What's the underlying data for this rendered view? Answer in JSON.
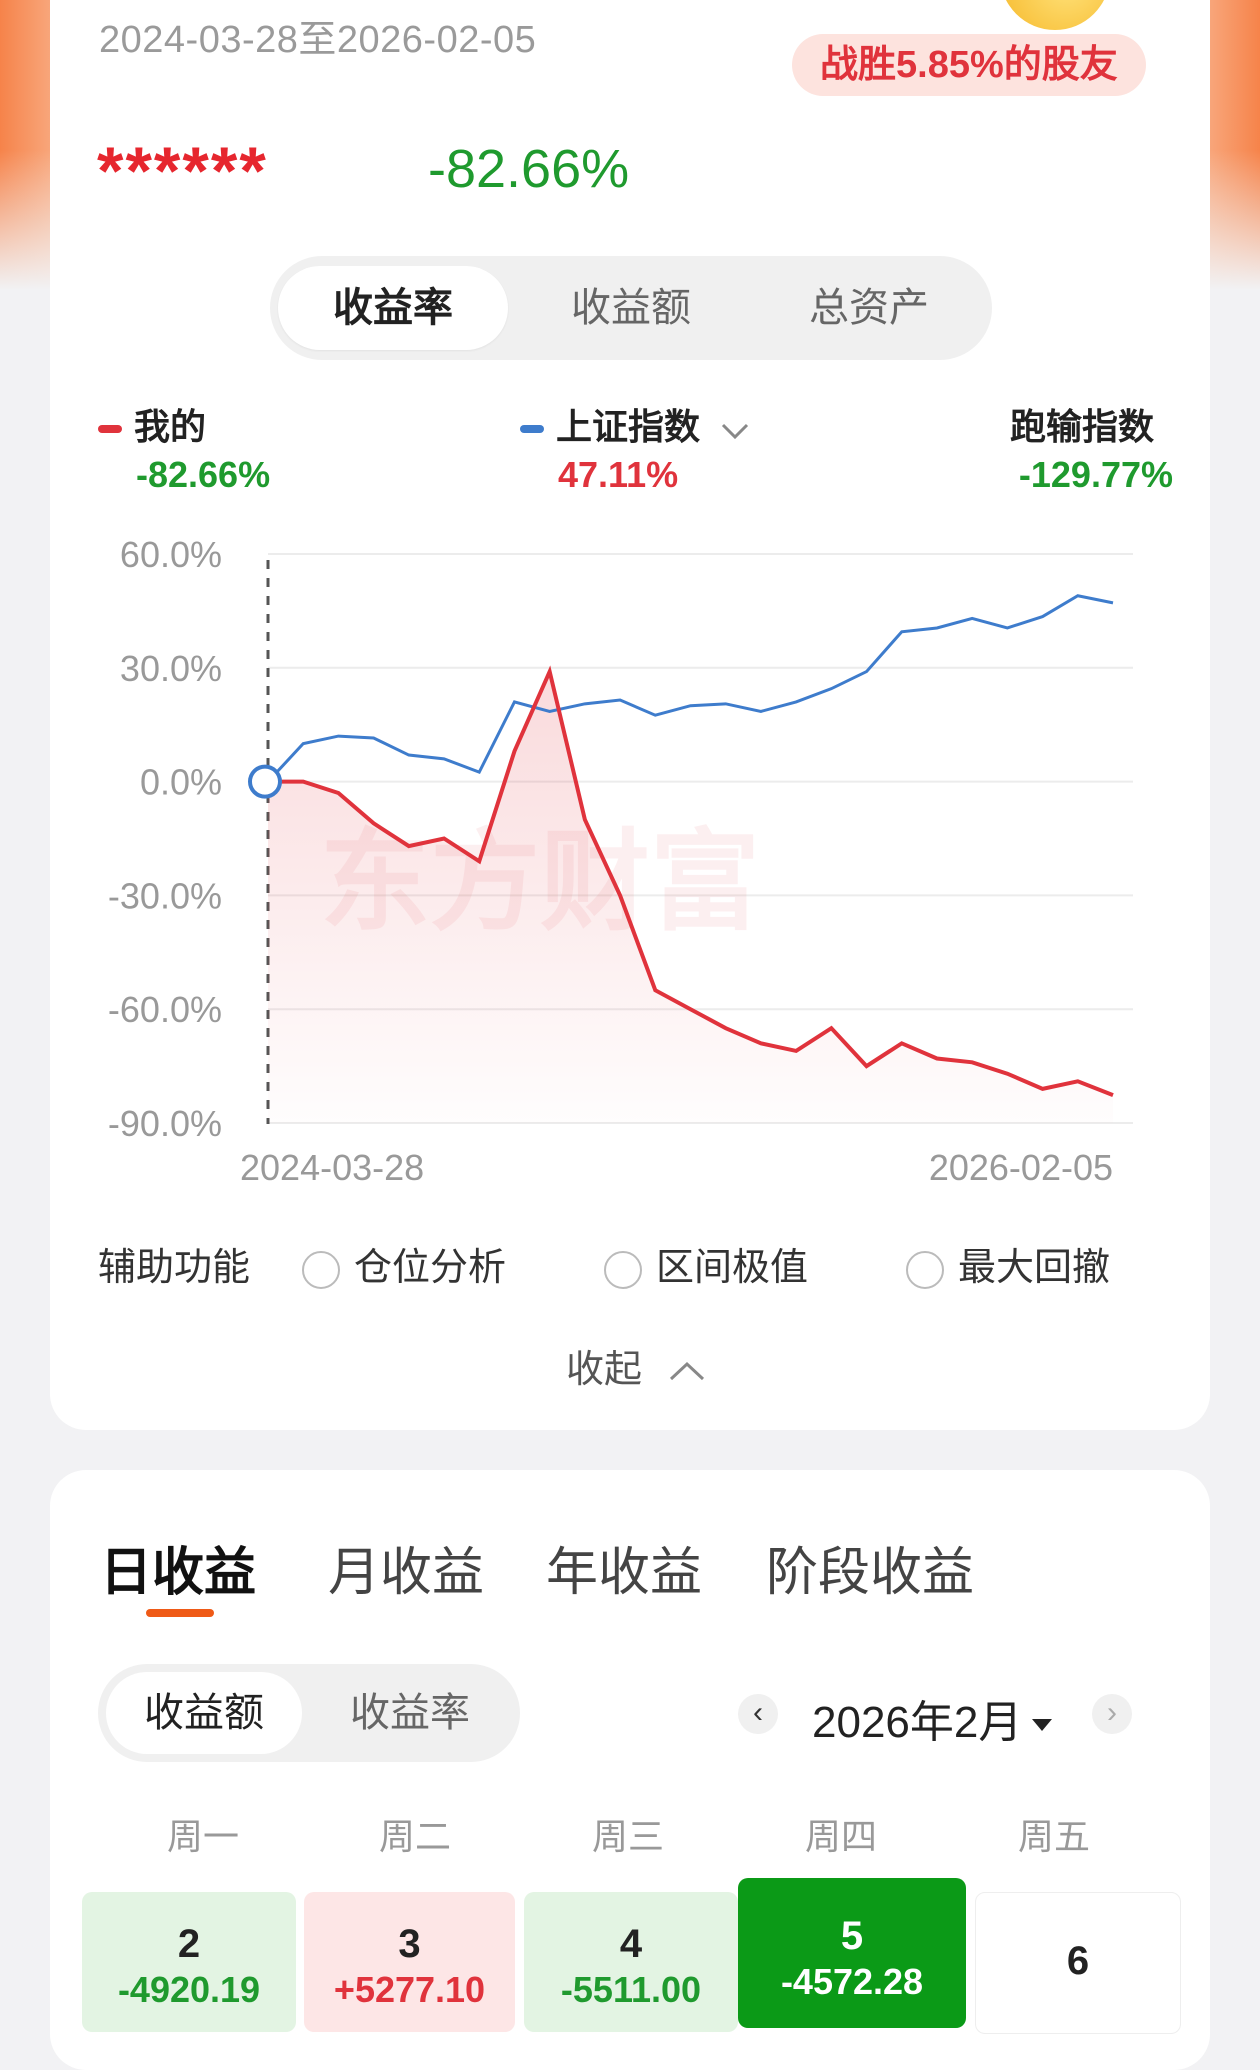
{
  "header": {
    "date_range": "2024-03-28至2026-02-05",
    "beat_badge": "战胜5.85%的股友",
    "masked_value": "******",
    "total_return": "-82.66%"
  },
  "metric_tabs": [
    "收益率",
    "收益额",
    "总资产"
  ],
  "legend": {
    "mine": {
      "label": "我的",
      "value": "-82.66%"
    },
    "index": {
      "label": "上证指数",
      "value": "47.11%"
    },
    "underperform": {
      "label": "跑输指数",
      "value": "-129.77%"
    }
  },
  "colors": {
    "mine": "#e0333c",
    "index": "#3e7ccc",
    "gain": "#e0333c",
    "loss": "#1f9a2e",
    "accent": "#ef5a17"
  },
  "watermark": "东方财富",
  "chart_data": {
    "type": "line",
    "x": [
      "2024-03-28",
      "2024-05-01",
      "2024-06-01",
      "2024-07-01",
      "2024-08-01",
      "2024-09-01",
      "2024-10-01",
      "2024-10-20",
      "2024-11-10",
      "2024-12-01",
      "2025-01-01",
      "2025-02-01",
      "2025-03-01",
      "2025-04-01",
      "2025-05-01",
      "2025-06-01",
      "2025-07-01",
      "2025-08-01",
      "2025-09-01",
      "2025-10-01",
      "2025-11-01",
      "2025-12-01",
      "2026-01-01",
      "2026-01-20",
      "2026-02-05"
    ],
    "series": [
      {
        "name": "我的",
        "values": [
          0,
          0,
          -3,
          -11,
          -17,
          -15,
          -21,
          8,
          29,
          -10,
          -30,
          -55,
          -60,
          -65,
          -69,
          -71,
          -65,
          -75,
          -69,
          -73,
          -74,
          -77,
          -81,
          -79,
          -82.66
        ]
      },
      {
        "name": "上证指数",
        "values": [
          0,
          10,
          12,
          11.5,
          7,
          6,
          2.5,
          21,
          18.5,
          20.5,
          21.5,
          17.5,
          20,
          20.5,
          18.5,
          21,
          24.5,
          29,
          39.5,
          40.5,
          43,
          40.5,
          43.5,
          49,
          47.11
        ]
      }
    ],
    "ylim": [
      -90,
      60
    ],
    "yticks": [
      "60.0%",
      "30.0%",
      "0.0%",
      "-30.0%",
      "-60.0%",
      "-90.0%"
    ],
    "xticks": [
      "2024-03-28",
      "2026-02-05"
    ],
    "grid": true
  },
  "aux": {
    "label": "辅助功能",
    "options": [
      "仓位分析",
      "区间极值",
      "最大回撤"
    ],
    "collapse": "收起"
  },
  "period_tabs": [
    "日收益",
    "月收益",
    "年收益",
    "阶段收益"
  ],
  "value_toggle": [
    "收益额",
    "收益率"
  ],
  "calendar": {
    "month": "2026年2月",
    "weekdays": [
      "周一",
      "周二",
      "周三",
      "周四",
      "周五"
    ],
    "days": [
      {
        "day": "2",
        "value": "-4920.19"
      },
      {
        "day": "3",
        "value": "+5277.10"
      },
      {
        "day": "4",
        "value": "-5511.00"
      },
      {
        "day": "5",
        "value": "-4572.28"
      },
      {
        "day": "6",
        "value": ""
      }
    ]
  }
}
